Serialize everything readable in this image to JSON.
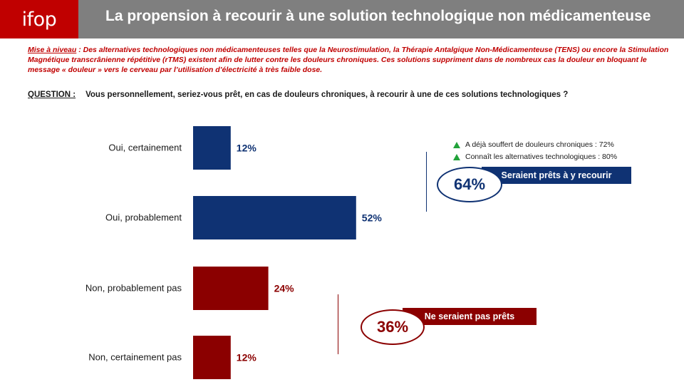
{
  "header": {
    "logo_text": "ifop",
    "title": "La propension à recourir à une solution technologique non médicamenteuse"
  },
  "intro": {
    "label": "Mise à niveau",
    "text": " : Des alternatives technologiques non médicamenteuses telles que la Neurostimulation, la Thérapie Antalgique Non-Médicamenteuse (TENS) ou encore la Stimulation Magnétique transcrânienne répétitive (rTMS) existent afin de lutter contre les douleurs chroniques. Ces solutions suppriment dans de nombreux cas la douleur en bloquant le message « douleur » vers le cerveau par l’utilisation d’électricité à très faible dose."
  },
  "question": {
    "label": "QUESTION :",
    "text": "Vous personnellement, seriez-vous prêt, en cas de douleurs chroniques, à recourir à une de ces solutions technologiques ?"
  },
  "colors": {
    "blue": "#0f3273",
    "red": "#8b0000"
  },
  "chart_data": {
    "type": "bar",
    "orientation": "horizontal",
    "categories": [
      "Oui, certainement",
      "Oui, probablement",
      "Non, probablement pas",
      "Non, certainement pas"
    ],
    "values": [
      12,
      52,
      24,
      12
    ],
    "value_labels": [
      "12%",
      "52%",
      "24%",
      "12%"
    ],
    "bar_colors": [
      "#0f3273",
      "#0f3273",
      "#8b0000",
      "#8b0000"
    ],
    "xlim": [
      0,
      100
    ]
  },
  "notes": [
    "A déjà souffert de douleurs chroniques : 72%",
    "Connaît les alternatives technologiques : 80%"
  ],
  "callouts": {
    "positive": {
      "value": "64%",
      "label": "Seraient prêts à y recourir"
    },
    "negative": {
      "value": "36%",
      "label": "Ne seraient pas prêts"
    }
  }
}
